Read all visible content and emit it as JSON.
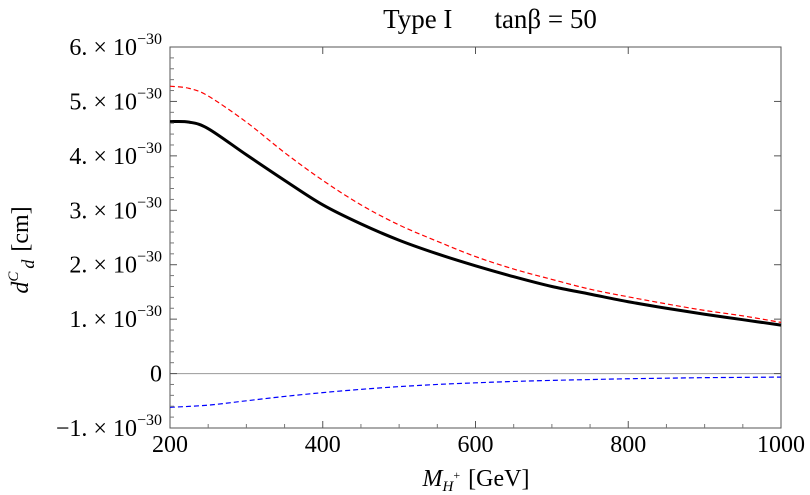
{
  "chart_data": {
    "type": "line",
    "title_model": "Type I",
    "title_param": "tanβ = 50",
    "xlabel": "M",
    "xlabel_sub": "H",
    "xlabel_sup": "+",
    "xlabel_unit": "[GeV]",
    "ylabel": "d",
    "ylabel_sup": "C",
    "ylabel_sub": "d",
    "ylabel_unit": "[cm]",
    "xlim": [
      200,
      1000
    ],
    "ylim": [
      -1e-30,
      6e-30
    ],
    "x_ticks": [
      {
        "value": 200,
        "label": "200"
      },
      {
        "value": 400,
        "label": "400"
      },
      {
        "value": 600,
        "label": "600"
      },
      {
        "value": 800,
        "label": "800"
      },
      {
        "value": 1000,
        "label": "1000"
      }
    ],
    "y_ticks": [
      {
        "value": -1e-30,
        "mant": "−1. × 10",
        "exp": "−30"
      },
      {
        "value": 0,
        "mant": "0",
        "exp": ""
      },
      {
        "value": 1e-30,
        "mant": "1. × 10",
        "exp": "−30"
      },
      {
        "value": 2e-30,
        "mant": "2. × 10",
        "exp": "−30"
      },
      {
        "value": 3e-30,
        "mant": "3. × 10",
        "exp": "−30"
      },
      {
        "value": 4e-30,
        "mant": "4. × 10",
        "exp": "−30"
      },
      {
        "value": 5e-30,
        "mant": "5. × 10",
        "exp": "−30"
      },
      {
        "value": 6e-30,
        "mant": "6. × 10",
        "exp": "−30"
      }
    ],
    "series": [
      {
        "style": "solid",
        "color": "#000000",
        "x": [
          200,
          225,
          250,
          300,
          350,
          400,
          450,
          500,
          550,
          600,
          650,
          700,
          750,
          800,
          850,
          900,
          950,
          1000
        ],
        "y": [
          4.63e-30,
          4.62e-30,
          4.5e-30,
          4.02e-30,
          3.55e-30,
          3.1e-30,
          2.75e-30,
          2.45e-30,
          2.2e-30,
          1.98e-30,
          1.78e-30,
          1.6e-30,
          1.46e-30,
          1.32e-30,
          1.2e-30,
          1.09e-30,
          9.9e-31,
          8.9e-31
        ]
      },
      {
        "style": "dashed",
        "color": "#ff0000",
        "x": [
          200,
          225,
          250,
          300,
          350,
          400,
          450,
          500,
          550,
          600,
          650,
          700,
          750,
          800,
          850,
          900,
          950,
          1000
        ],
        "y": [
          5.28e-30,
          5.24e-30,
          5.1e-30,
          4.62e-30,
          4.06e-30,
          3.55e-30,
          3.1e-30,
          2.73e-30,
          2.43e-30,
          2.15e-30,
          1.92e-30,
          1.73e-30,
          1.55e-30,
          1.41e-30,
          1.28e-30,
          1.16e-30,
          1.06e-30,
          9.4e-31
        ]
      },
      {
        "style": "dashed",
        "color": "#0000ff",
        "x": [
          200,
          250,
          300,
          350,
          400,
          450,
          500,
          550,
          600,
          650,
          700,
          750,
          800,
          850,
          900,
          950,
          1000
        ],
        "y": [
          -6.2e-31,
          -5.8e-31,
          -5e-31,
          -4.2e-31,
          -3.5e-31,
          -2.9e-31,
          -2.4e-31,
          -2e-31,
          -1.7e-31,
          -1.45e-31,
          -1.25e-31,
          -1.1e-31,
          -9.5e-32,
          -8.5e-32,
          -7.5e-32,
          -7e-32,
          -6.5e-32
        ]
      }
    ],
    "zero_line": true,
    "grid": false
  }
}
